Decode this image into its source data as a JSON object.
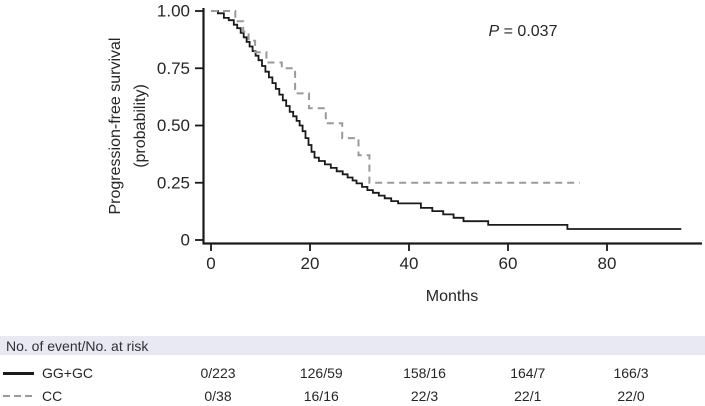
{
  "chart_data": {
    "type": "line",
    "subtype": "kaplan-meier-step",
    "title": "",
    "xlabel": "Months",
    "ylabel_lines": [
      "Progression-free survival",
      "(probability)"
    ],
    "xlim": [
      0,
      99
    ],
    "ylim": [
      0,
      1.0
    ],
    "grid": false,
    "legend_position": "none",
    "x_ticks": [
      "0",
      "20",
      "40",
      "60",
      "80"
    ],
    "x_tick_values": [
      0,
      20,
      40,
      60,
      80
    ],
    "y_ticks": [
      "1.00",
      "0.75",
      "0.50",
      "0.25",
      "0"
    ],
    "y_tick_values": [
      1.0,
      0.75,
      0.5,
      0.25,
      0
    ],
    "annotation": {
      "italic_part": "P",
      "rest_part": " = 0.037"
    },
    "series": [
      {
        "name": "GG+GC",
        "style": "solid",
        "color": "#1a1a1a",
        "end_t": 95,
        "points": [
          [
            0,
            1.0
          ],
          [
            1.4,
            0.99
          ],
          [
            2.6,
            0.97
          ],
          [
            3.6,
            0.96
          ],
          [
            4.6,
            0.94
          ],
          [
            5.3,
            0.925
          ],
          [
            6.0,
            0.905
          ],
          [
            6.6,
            0.885
          ],
          [
            7.2,
            0.865
          ],
          [
            7.8,
            0.845
          ],
          [
            8.4,
            0.825
          ],
          [
            9.0,
            0.805
          ],
          [
            9.6,
            0.785
          ],
          [
            10.3,
            0.76
          ],
          [
            11.0,
            0.735
          ],
          [
            11.7,
            0.71
          ],
          [
            12.4,
            0.685
          ],
          [
            13.1,
            0.66
          ],
          [
            13.8,
            0.635
          ],
          [
            14.5,
            0.61
          ],
          [
            15.2,
            0.585
          ],
          [
            15.9,
            0.56
          ],
          [
            16.6,
            0.54
          ],
          [
            17.3,
            0.52
          ],
          [
            17.9,
            0.5
          ],
          [
            18.5,
            0.475
          ],
          [
            19.1,
            0.445
          ],
          [
            19.7,
            0.415
          ],
          [
            20.3,
            0.385
          ],
          [
            20.9,
            0.36
          ],
          [
            21.8,
            0.345
          ],
          [
            23.0,
            0.33
          ],
          [
            24.2,
            0.315
          ],
          [
            25.4,
            0.3
          ],
          [
            26.6,
            0.287
          ],
          [
            27.6,
            0.273
          ],
          [
            28.6,
            0.26
          ],
          [
            29.4,
            0.247
          ],
          [
            30.5,
            0.232
          ],
          [
            31.6,
            0.218
          ],
          [
            32.7,
            0.206
          ],
          [
            33.9,
            0.194
          ],
          [
            35.1,
            0.182
          ],
          [
            36.4,
            0.17
          ],
          [
            37.8,
            0.16
          ],
          [
            42.4,
            0.14
          ],
          [
            44.7,
            0.126
          ],
          [
            46.9,
            0.112
          ],
          [
            49.0,
            0.097
          ],
          [
            51.0,
            0.082
          ],
          [
            56.0,
            0.066
          ],
          [
            72.0,
            0.048
          ]
        ]
      },
      {
        "name": "CC",
        "style": "dashed",
        "color": "#9a9a9a",
        "end_t": 74.5,
        "points": [
          [
            0,
            1.0
          ],
          [
            4.9,
            0.955
          ],
          [
            6.5,
            0.91
          ],
          [
            7.6,
            0.87
          ],
          [
            8.9,
            0.82
          ],
          [
            11.2,
            0.775
          ],
          [
            14.3,
            0.75
          ],
          [
            17.0,
            0.64
          ],
          [
            19.8,
            0.575
          ],
          [
            23.2,
            0.51
          ],
          [
            26.5,
            0.445
          ],
          [
            29.8,
            0.37
          ],
          [
            32.0,
            0.25
          ]
        ]
      }
    ]
  },
  "risk_table": {
    "header": "No. of event/No. at risk",
    "time_points": [
      0,
      20,
      40,
      60,
      80
    ],
    "rows": [
      {
        "label": "GG+GC",
        "swatch": "solid",
        "values": [
          "0/223",
          "126/59",
          "158/16",
          "164/7",
          "166/3"
        ]
      },
      {
        "label": "CC",
        "swatch": "dashed",
        "values": [
          "0/38",
          "16/16",
          "22/3",
          "22/1",
          "22/0"
        ]
      }
    ]
  }
}
